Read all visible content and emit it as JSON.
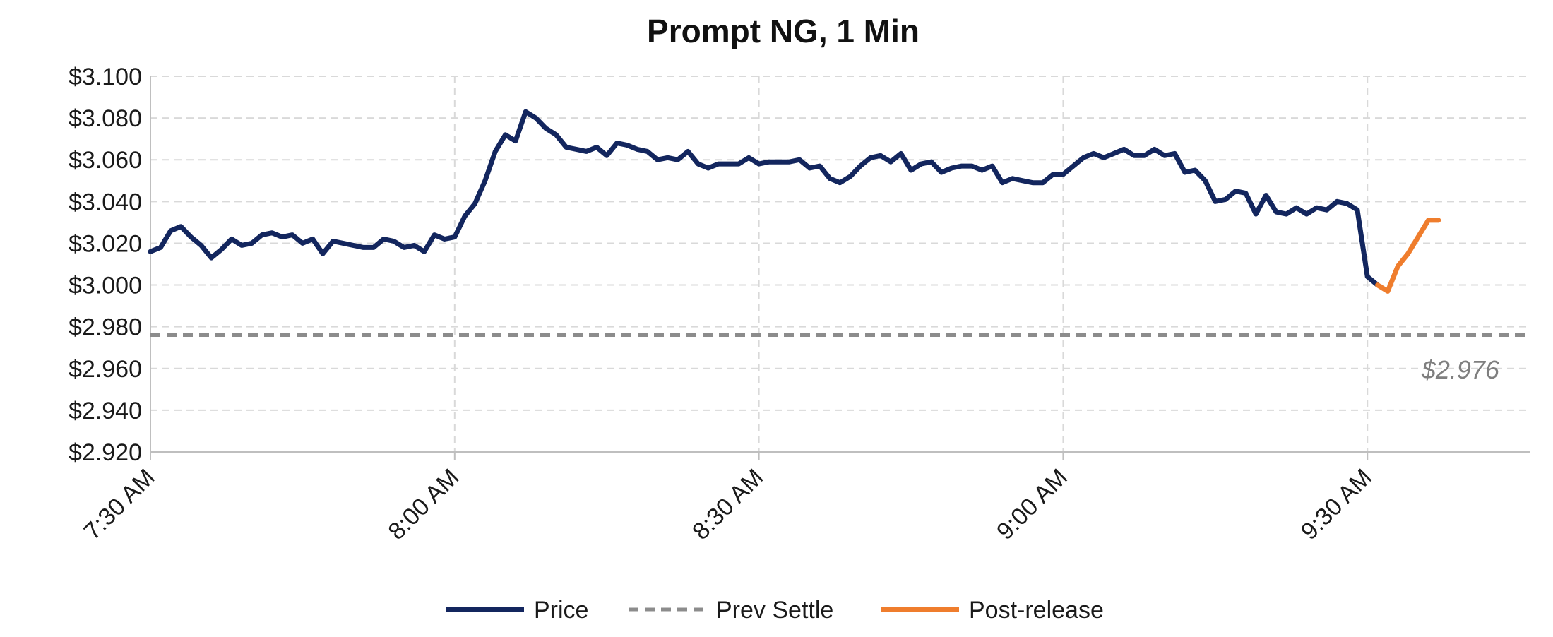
{
  "chart_data": {
    "type": "line",
    "title": "Prompt NG, 1 Min",
    "xlabel": "",
    "ylabel": "",
    "x_ticks": [
      "7:30 AM",
      "8:00 AM",
      "8:30 AM",
      "9:00 AM",
      "9:30 AM"
    ],
    "x_tick_minutes": [
      0,
      30,
      60,
      90,
      120
    ],
    "xlim_minutes": [
      0,
      136
    ],
    "y_ticks": [
      "$3.100",
      "$3.080",
      "$3.060",
      "$3.040",
      "$3.020",
      "$3.000",
      "$2.980",
      "$2.960",
      "$2.940",
      "$2.920"
    ],
    "y_tick_values": [
      3.1,
      3.08,
      3.06,
      3.04,
      3.02,
      3.0,
      2.98,
      2.96,
      2.94,
      2.92
    ],
    "ylim": [
      2.92,
      3.1
    ],
    "grid": true,
    "legend_position": "bottom",
    "colors": {
      "price": "#13265e",
      "prev_settle": "#8c8c8c",
      "post_release": "#ef7d2d",
      "grid": "#d9d9d9",
      "axis": "#bfbfbf"
    },
    "series": [
      {
        "name": "Price",
        "color": "#13265e",
        "style": "solid",
        "x_minutes": [
          0,
          1,
          2,
          3,
          4,
          5,
          6,
          7,
          8,
          9,
          10,
          11,
          12,
          13,
          14,
          15,
          16,
          17,
          18,
          19,
          20,
          21,
          22,
          23,
          24,
          25,
          26,
          27,
          28,
          29,
          30,
          31,
          32,
          33,
          34,
          35,
          36,
          37,
          38,
          39,
          40,
          41,
          42,
          43,
          44,
          45,
          46,
          47,
          48,
          49,
          50,
          51,
          52,
          53,
          54,
          55,
          56,
          57,
          58,
          59,
          60,
          61,
          62,
          63,
          64,
          65,
          66,
          67,
          68,
          69,
          70,
          71,
          72,
          73,
          74,
          75,
          76,
          77,
          78,
          79,
          80,
          81,
          82,
          83,
          84,
          85,
          86,
          87,
          88,
          89,
          90,
          91,
          92,
          93,
          94,
          95,
          96,
          97,
          98,
          99,
          100,
          101,
          102,
          103,
          104,
          105,
          106,
          107,
          108,
          109,
          110,
          111,
          112,
          113,
          114,
          115,
          116,
          117,
          118,
          119,
          120,
          121
        ],
        "values": [
          3.016,
          3.018,
          3.026,
          3.028,
          3.023,
          3.019,
          3.013,
          3.017,
          3.022,
          3.019,
          3.02,
          3.024,
          3.025,
          3.023,
          3.024,
          3.02,
          3.022,
          3.015,
          3.021,
          3.02,
          3.019,
          3.018,
          3.018,
          3.022,
          3.021,
          3.018,
          3.019,
          3.016,
          3.024,
          3.022,
          3.023,
          3.033,
          3.039,
          3.05,
          3.064,
          3.072,
          3.069,
          3.083,
          3.08,
          3.075,
          3.072,
          3.066,
          3.065,
          3.064,
          3.066,
          3.062,
          3.068,
          3.067,
          3.065,
          3.064,
          3.06,
          3.061,
          3.06,
          3.064,
          3.058,
          3.056,
          3.058,
          3.058,
          3.058,
          3.061,
          3.058,
          3.059,
          3.059,
          3.059,
          3.06,
          3.056,
          3.057,
          3.051,
          3.049,
          3.052,
          3.057,
          3.061,
          3.062,
          3.059,
          3.063,
          3.055,
          3.058,
          3.059,
          3.054,
          3.056,
          3.057,
          3.057,
          3.055,
          3.057,
          3.049,
          3.051,
          3.05,
          3.049,
          3.049,
          3.053,
          3.053,
          3.057,
          3.061,
          3.063,
          3.061,
          3.063,
          3.065,
          3.062,
          3.062,
          3.065,
          3.062,
          3.063,
          3.054,
          3.055,
          3.05,
          3.04,
          3.041,
          3.045,
          3.044,
          3.034,
          3.043,
          3.035,
          3.034,
          3.037,
          3.034,
          3.037,
          3.036,
          3.04,
          3.039,
          3.036,
          3.004,
          3.0
        ]
      },
      {
        "name": "Prev Settle",
        "color": "#8c8c8c",
        "style": "dashed",
        "x_minutes": [
          0,
          136
        ],
        "values": [
          2.976,
          2.976
        ]
      },
      {
        "name": "Post-release",
        "color": "#ef7d2d",
        "style": "solid",
        "x_minutes": [
          121,
          122,
          123,
          124,
          125,
          126,
          127
        ],
        "values": [
          3.0,
          2.997,
          3.009,
          3.015,
          3.023,
          3.031,
          3.031
        ]
      }
    ],
    "annotations": [
      {
        "text": "$2.976",
        "x_minutes": 133,
        "y": 2.96
      }
    ]
  }
}
